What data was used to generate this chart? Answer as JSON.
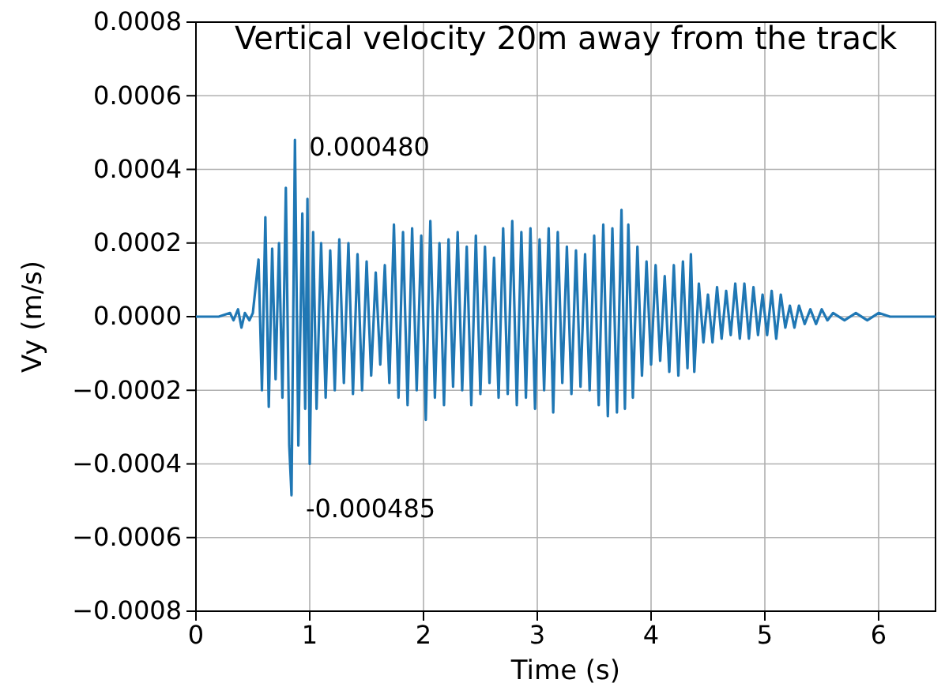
{
  "chart_data": {
    "type": "line",
    "title": "Vertical velocity 20m away from the track",
    "xlabel": "Time (s)",
    "ylabel": "Vy (m/s)",
    "xlim": [
      0,
      6.5
    ],
    "xticks": [
      0,
      1,
      2,
      3,
      4,
      5,
      6
    ],
    "ylim": [
      -0.0008,
      0.0008
    ],
    "yticks": [
      {
        "value": -0.0008,
        "label": "−0.0008"
      },
      {
        "value": -0.0006,
        "label": "−0.0006"
      },
      {
        "value": -0.0004,
        "label": "−0.0004"
      },
      {
        "value": -0.0002,
        "label": "−0.0002"
      },
      {
        "value": 0,
        "label": "0.0000"
      },
      {
        "value": 0.0002,
        "label": "0.0002"
      },
      {
        "value": 0.0004,
        "label": "0.0004"
      },
      {
        "value": 0.0006,
        "label": "0.0006"
      },
      {
        "value": 0.0008,
        "label": "0.0008"
      }
    ],
    "grid": true,
    "marker": "none",
    "line_style": "solid",
    "annotations": [
      {
        "text": "0.000480",
        "x": 0.87,
        "y": 0.00048
      },
      {
        "text": "-0.000485",
        "x": 0.84,
        "y": -0.000485
      }
    ],
    "series": [
      {
        "color": "#1f77b4",
        "x": [
          0,
          0.2,
          0.3,
          0.33,
          0.37,
          0.4,
          0.43,
          0.47,
          0.5,
          0.55,
          0.58,
          0.61,
          0.64,
          0.67,
          0.7,
          0.73,
          0.76,
          0.79,
          0.82,
          0.84,
          0.87,
          0.9,
          0.935,
          0.96,
          0.98,
          1.0,
          1.03,
          1.06,
          1.1,
          1.14,
          1.18,
          1.22,
          1.26,
          1.3,
          1.34,
          1.38,
          1.42,
          1.46,
          1.5,
          1.54,
          1.58,
          1.62,
          1.66,
          1.7,
          1.74,
          1.78,
          1.82,
          1.86,
          1.9,
          1.94,
          1.98,
          2.02,
          2.06,
          2.1,
          2.14,
          2.18,
          2.22,
          2.26,
          2.3,
          2.34,
          2.38,
          2.42,
          2.46,
          2.5,
          2.54,
          2.58,
          2.62,
          2.66,
          2.7,
          2.74,
          2.78,
          2.82,
          2.86,
          2.9,
          2.94,
          2.98,
          3.02,
          3.06,
          3.1,
          3.14,
          3.18,
          3.22,
          3.26,
          3.3,
          3.34,
          3.38,
          3.42,
          3.46,
          3.5,
          3.54,
          3.58,
          3.62,
          3.66,
          3.7,
          3.74,
          3.77,
          3.8,
          3.84,
          3.88,
          3.92,
          3.96,
          4.0,
          4.04,
          4.08,
          4.12,
          4.16,
          4.2,
          4.24,
          4.28,
          4.32,
          4.35,
          4.38,
          4.42,
          4.46,
          4.5,
          4.54,
          4.58,
          4.62,
          4.66,
          4.7,
          4.74,
          4.78,
          4.82,
          4.86,
          4.9,
          4.94,
          4.98,
          5.02,
          5.06,
          5.1,
          5.14,
          5.18,
          5.22,
          5.26,
          5.3,
          5.35,
          5.4,
          5.45,
          5.5,
          5.55,
          5.6,
          5.7,
          5.8,
          5.9,
          6.0,
          6.1,
          6.5
        ],
        "values": [
          0,
          0,
          1e-05,
          -1e-05,
          2e-05,
          -3e-05,
          1e-05,
          -1e-05,
          1e-05,
          0.000155,
          -0.0002,
          0.00027,
          -0.000245,
          0.000185,
          -0.00017,
          0.0002,
          -0.00022,
          0.00035,
          -0.00035,
          -0.000485,
          0.00048,
          -0.00035,
          0.00028,
          -0.00025,
          0.00032,
          -0.0004,
          0.00023,
          -0.00025,
          0.0002,
          -0.00022,
          0.00018,
          -0.0002,
          0.00021,
          -0.00018,
          0.0002,
          -0.00021,
          0.00017,
          -0.0002,
          0.00015,
          -0.00016,
          0.00012,
          -0.00013,
          0.00014,
          -0.00018,
          0.00025,
          -0.00022,
          0.00023,
          -0.00024,
          0.00024,
          -0.0002,
          0.00022,
          -0.00028,
          0.00026,
          -0.00022,
          0.0002,
          -0.00024,
          0.00021,
          -0.00019,
          0.00023,
          -0.0002,
          0.00019,
          -0.00024,
          0.00022,
          -0.00021,
          0.00019,
          -0.00018,
          0.00016,
          -0.00022,
          0.00024,
          -0.00021,
          0.00026,
          -0.00024,
          0.00023,
          -0.00022,
          0.00024,
          -0.00025,
          0.00021,
          -0.0002,
          0.00024,
          -0.00026,
          0.00023,
          -0.00018,
          0.00019,
          -0.00021,
          0.00018,
          -0.00019,
          0.00017,
          -0.0002,
          0.00022,
          -0.00024,
          0.00025,
          -0.00027,
          0.00024,
          -0.00026,
          0.00029,
          -0.00025,
          0.00025,
          -0.00022,
          0.00019,
          -0.00016,
          0.00015,
          -0.00013,
          0.00014,
          -0.00012,
          0.00011,
          -0.00015,
          0.00014,
          -0.00016,
          0.00015,
          -0.00014,
          0.00017,
          -0.00015,
          9e-05,
          -7e-05,
          6e-05,
          -7e-05,
          8e-05,
          -6e-05,
          7e-05,
          -5e-05,
          9e-05,
          -6e-05,
          9e-05,
          -6e-05,
          8e-05,
          -5e-05,
          6e-05,
          -5e-05,
          7e-05,
          -6e-05,
          6e-05,
          -3e-05,
          3e-05,
          -3e-05,
          3e-05,
          -2e-05,
          2e-05,
          -2e-05,
          2e-05,
          -1e-05,
          1e-05,
          -1e-05,
          1e-05,
          -1e-05,
          1e-05,
          0,
          0
        ]
      }
    ]
  }
}
